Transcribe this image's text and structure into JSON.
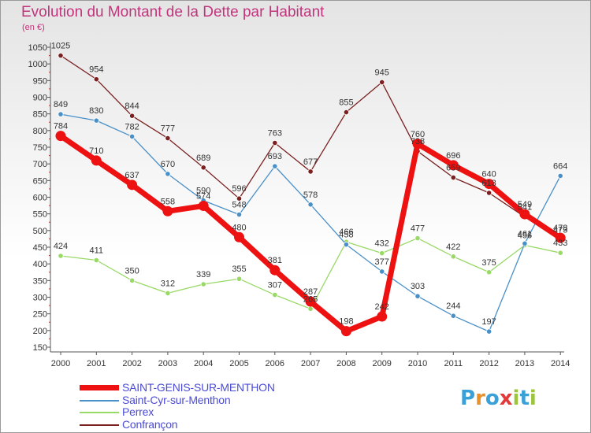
{
  "logo_text": "Proxiti",
  "logo_colors": [
    "#3aa0d8",
    "#e8902a",
    "#3aa0d8",
    "#e23a3a",
    "#9cc43c",
    "#3aa0d8",
    "#9cc43c"
  ],
  "chart_data": {
    "type": "line",
    "title": "Evolution du Montant de la Dette par Habitant",
    "subtitle": "(en €)",
    "x": [
      "2000",
      "2001",
      "2002",
      "2003",
      "2004",
      "2005",
      "2006",
      "2007",
      "2008",
      "2009",
      "2010",
      "2011",
      "2012",
      "2013",
      "2014"
    ],
    "ylim": [
      150,
      1050
    ],
    "yticks": [
      150,
      200,
      250,
      300,
      350,
      400,
      450,
      500,
      550,
      600,
      650,
      700,
      750,
      800,
      850,
      900,
      950,
      1000,
      1050
    ],
    "grid": false,
    "legend_position": "bottom-left",
    "series": [
      {
        "name": "Confrançon",
        "color": "#7b2020",
        "values": [
          1025,
          954,
          844,
          777,
          689,
          596,
          763,
          677,
          855,
          945,
          738,
          659,
          613,
          541,
          473
        ]
      },
      {
        "name": "Perrex",
        "color": "#99d966",
        "values": [
          424,
          411,
          350,
          312,
          339,
          355,
          307,
          265,
          466,
          432,
          477,
          422,
          375,
          456,
          433
        ]
      },
      {
        "name": "Saint-Cyr-sur-Menthon",
        "color": "#4a90c8",
        "values": [
          849,
          830,
          782,
          670,
          590,
          548,
          693,
          578,
          458,
          377,
          303,
          244,
          197,
          461,
          664
        ]
      },
      {
        "name": "SAINT-GENIS-SUR-MENTHON",
        "color": "#ee1111",
        "values": [
          784,
          710,
          637,
          558,
          574,
          480,
          381,
          287,
          198,
          242,
          760,
          696,
          640,
          549,
          478
        ]
      }
    ],
    "legend_order": [
      "SAINT-GENIS-SUR-MENTHON",
      "Saint-Cyr-sur-Menthon",
      "Perrex",
      "Confrançon"
    ]
  }
}
